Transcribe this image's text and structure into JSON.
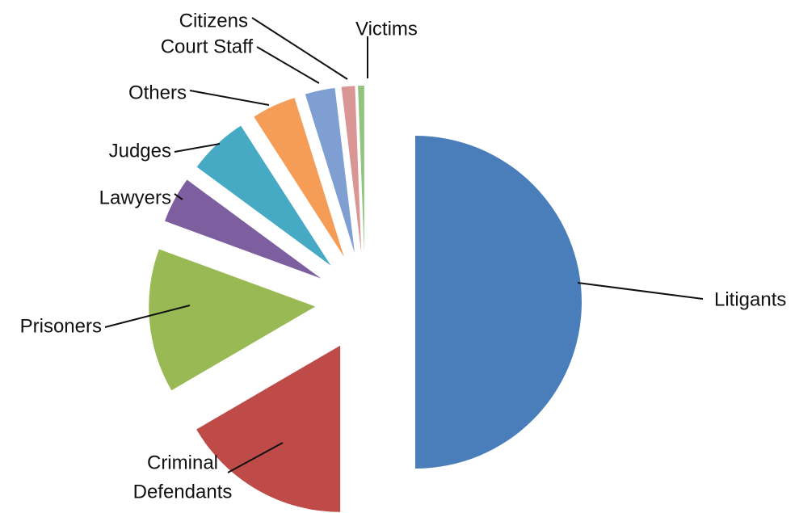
{
  "chart_data": {
    "type": "pie",
    "title": "",
    "slices": [
      {
        "label": "Litigants",
        "value": 50.0,
        "color": "#4a7ebb"
      },
      {
        "label": "Criminal Defendants",
        "value": 16.6,
        "color": "#be4b48"
      },
      {
        "label": "Prisoners",
        "value": 14.0,
        "color": "#98b954"
      },
      {
        "label": "Lawyers",
        "value": 4.5,
        "color": "#7d5fa0"
      },
      {
        "label": "Judges",
        "value": 5.8,
        "color": "#46aac5"
      },
      {
        "label": "Others",
        "value": 4.3,
        "color": "#f59d56"
      },
      {
        "label": "Court Staff",
        "value": 2.9,
        "color": "#7f9fd3"
      },
      {
        "label": "Citizens",
        "value": 1.3,
        "color": "#d99694"
      },
      {
        "label": "Victims",
        "value": 0.6,
        "color": "#93c47d"
      }
    ],
    "legend": "none",
    "label_lines": {
      "Criminal Defendants": [
        "Criminal",
        "Defendants"
      ]
    }
  }
}
